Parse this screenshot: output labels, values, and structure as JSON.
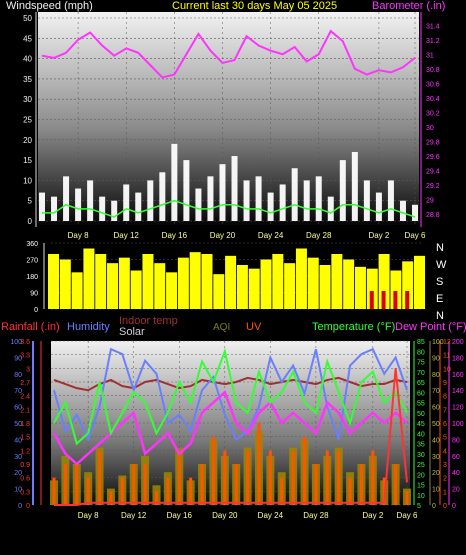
{
  "header": {
    "left_title": "Windspeed (mph)",
    "center_title": "Current last 30 days May 05 2025",
    "right_title": "Barometer (.in)"
  },
  "colors": {
    "wind_left_axis": "#f0f0f0",
    "barometer": "#ff33ff",
    "title_center": "#ffff00",
    "wind_gust": "#ffffff",
    "wind_avg": "#33ff33",
    "wind_dir": "#ffff00",
    "wind_dir_red": "#dd0000",
    "rainfall": "#ff3333",
    "humidity": "#6a7fff",
    "indoor_temp": "#a03030",
    "solar": "#d0d0d0",
    "aqi": "#808000",
    "uv": "#ff5500",
    "temperature": "#33ff33",
    "dew_point": "#ff33ff",
    "date_labels": "#ffff99"
  },
  "chart_data": [
    {
      "type": "line",
      "title": "Current last 30 days May 05 2025",
      "ylabel": "Windspeed (mph)",
      "y2label": "Barometer (.in)",
      "ylim": [
        0,
        50
      ],
      "yticks": [
        0,
        5,
        10,
        15,
        20,
        25,
        30,
        35,
        40,
        45,
        50
      ],
      "y2lim": [
        28.7,
        31.5
      ],
      "y2ticks": [
        "28.8",
        "29",
        "29.2",
        "29.4",
        "29.6",
        "29.8",
        "30",
        "30.2",
        "30.4",
        "30.6",
        "30.8",
        "31",
        "31.2",
        "31.4"
      ],
      "xticks": [
        "Day 8",
        "Day 12",
        "Day 16",
        "Day 20",
        "Day 24",
        "Day 28",
        "Day 2",
        "Day 6"
      ],
      "background": "gradient white to black",
      "series": [
        {
          "name": "Barometer (.in)",
          "axis": "right",
          "x": [
            5,
            6,
            7,
            8,
            9,
            10,
            11,
            12,
            13,
            14,
            15,
            16,
            17,
            18,
            19,
            20,
            21,
            22,
            23,
            24,
            25,
            26,
            27,
            28,
            29,
            30,
            1,
            2,
            3,
            4,
            5,
            6
          ],
          "values": [
            30.98,
            30.95,
            31.02,
            31.2,
            31.3,
            31.12,
            30.98,
            31.08,
            31.02,
            30.85,
            30.68,
            30.72,
            31.0,
            31.28,
            31.05,
            30.88,
            30.92,
            31.25,
            31.12,
            31.05,
            31.0,
            31.1,
            30.9,
            31.0,
            31.32,
            31.18,
            30.8,
            30.72,
            30.78,
            30.75,
            30.82,
            30.95
          ]
        },
        {
          "name": "Wind gust (mph)",
          "axis": "left",
          "x": [
            5,
            6,
            7,
            8,
            9,
            10,
            11,
            12,
            13,
            14,
            15,
            16,
            17,
            18,
            19,
            20,
            21,
            22,
            23,
            24,
            25,
            26,
            27,
            28,
            29,
            30,
            1,
            2,
            3,
            4,
            5,
            6
          ],
          "values": [
            7,
            6,
            11,
            8,
            10,
            6,
            5,
            9,
            7,
            10,
            12,
            19,
            15,
            8,
            11,
            14,
            16,
            10,
            11,
            7,
            9,
            13,
            10,
            11,
            6,
            15,
            17,
            10,
            7,
            10,
            5,
            4
          ]
        },
        {
          "name": "Wind average (mph)",
          "axis": "left",
          "x": [
            5,
            6,
            7,
            8,
            9,
            10,
            11,
            12,
            13,
            14,
            15,
            16,
            17,
            18,
            19,
            20,
            21,
            22,
            23,
            24,
            25,
            26,
            27,
            28,
            29,
            30,
            1,
            2,
            3,
            4,
            5,
            6
          ],
          "values": [
            2,
            2,
            4,
            3,
            3,
            2,
            1,
            3,
            2,
            3,
            4,
            5,
            4,
            3,
            3,
            4,
            4,
            3,
            3,
            2,
            3,
            4,
            3,
            3,
            2,
            4,
            4,
            3,
            2,
            3,
            2,
            1
          ]
        }
      ]
    },
    {
      "type": "scatter",
      "title": "",
      "ylabel": "",
      "ylim": [
        0,
        360
      ],
      "yticks": [
        0,
        90,
        180,
        270,
        360
      ],
      "right_labels": [
        "N",
        "W",
        "S",
        "E",
        "N"
      ],
      "series": [
        {
          "name": "Wind direction (deg)",
          "x": [
            5,
            6,
            7,
            8,
            9,
            10,
            11,
            12,
            13,
            14,
            15,
            16,
            17,
            18,
            19,
            20,
            21,
            22,
            23,
            24,
            25,
            26,
            27,
            28,
            29,
            30,
            1,
            2,
            3,
            4,
            5,
            6
          ],
          "values": [
            300,
            270,
            200,
            330,
            300,
            250,
            280,
            210,
            300,
            250,
            200,
            280,
            310,
            300,
            190,
            290,
            240,
            220,
            270,
            300,
            250,
            330,
            280,
            240,
            300,
            270,
            230,
            220,
            300,
            210,
            260,
            290
          ]
        }
      ]
    },
    {
      "type": "line",
      "title": "",
      "xticks": [
        "Day 8",
        "Day 12",
        "Day 16",
        "Day 20",
        "Day 24",
        "Day 28",
        "Day 2",
        "Day 6"
      ],
      "axes": [
        {
          "label": "Rainfall (.in)",
          "ticks": [
            "0",
            "0.3",
            "0.6",
            "0.9",
            "1.2",
            "1.5",
            "1.8",
            "2.1",
            "2.4",
            "2.7",
            "3",
            "3.3",
            "3.6"
          ]
        },
        {
          "label": "Humidity",
          "ticks": [
            "0",
            "10",
            "20",
            "30",
            "40",
            "50",
            "60",
            "70",
            "80",
            "90",
            "100"
          ]
        },
        {
          "label": "Indoor temp",
          "ticks": []
        },
        {
          "label": "Solar",
          "ticks": []
        },
        {
          "label": "AQI",
          "ticks": [
            "0",
            "10",
            "20",
            "30",
            "40",
            "50",
            "60",
            "70",
            "80",
            "90",
            "100"
          ]
        },
        {
          "label": "UV",
          "ticks": [
            "0",
            "1",
            "2",
            "3",
            "4",
            "5",
            "6",
            "7",
            "8",
            "9",
            "10",
            "11",
            "12"
          ]
        },
        {
          "label": "Temperature (°F)",
          "ticks": [
            "5",
            "10",
            "15",
            "20",
            "25",
            "30",
            "35",
            "40",
            "45",
            "50",
            "55",
            "60",
            "65",
            "70",
            "75",
            "80",
            "85"
          ]
        },
        {
          "label": "Dew Point (°F)",
          "ticks": [
            "0",
            "20",
            "40",
            "60",
            "80",
            "100",
            "120",
            "140",
            "160",
            "180",
            "200"
          ]
        }
      ],
      "series": [
        {
          "name": "Humidity",
          "axis": "Humidity",
          "x": [
            5,
            6,
            7,
            8,
            9,
            10,
            11,
            12,
            13,
            14,
            15,
            16,
            17,
            18,
            19,
            20,
            21,
            22,
            23,
            24,
            25,
            26,
            27,
            28,
            29,
            30,
            1,
            2,
            3,
            4,
            5,
            6
          ],
          "values": [
            70,
            45,
            55,
            40,
            60,
            95,
            92,
            70,
            88,
            80,
            50,
            55,
            45,
            70,
            78,
            55,
            40,
            45,
            60,
            90,
            75,
            85,
            68,
            95,
            60,
            40,
            85,
            92,
            95,
            80,
            90,
            70
          ]
        },
        {
          "name": "Temperature (°F)",
          "axis": "Temperature (°F)",
          "x": [
            5,
            6,
            7,
            8,
            9,
            10,
            11,
            12,
            13,
            14,
            15,
            16,
            17,
            18,
            19,
            20,
            21,
            22,
            23,
            24,
            25,
            26,
            27,
            28,
            29,
            30,
            1,
            2,
            3,
            4,
            5,
            6
          ],
          "values": [
            45,
            55,
            35,
            40,
            65,
            40,
            50,
            60,
            55,
            40,
            50,
            65,
            55,
            75,
            65,
            80,
            55,
            50,
            70,
            55,
            60,
            70,
            55,
            50,
            75,
            60,
            45,
            65,
            70,
            55,
            60,
            50
          ]
        },
        {
          "name": "Dew Point (°F)",
          "axis": "Temperature (°F)",
          "x": [
            5,
            6,
            7,
            8,
            9,
            10,
            11,
            12,
            13,
            14,
            15,
            16,
            17,
            18,
            19,
            20,
            21,
            22,
            23,
            24,
            25,
            26,
            27,
            28,
            29,
            30,
            1,
            2,
            3,
            4,
            5,
            6
          ],
          "values": [
            40,
            30,
            25,
            30,
            35,
            40,
            45,
            50,
            30,
            35,
            40,
            30,
            35,
            50,
            55,
            60,
            45,
            40,
            50,
            55,
            45,
            50,
            45,
            40,
            55,
            50,
            40,
            45,
            50,
            45,
            50,
            45
          ]
        },
        {
          "name": "Indoor temp",
          "axis": "Temperature (°F)",
          "x": [
            5,
            6,
            7,
            8,
            9,
            10,
            11,
            12,
            13,
            14,
            15,
            16,
            17,
            18,
            19,
            20,
            21,
            22,
            23,
            24,
            25,
            26,
            27,
            28,
            29,
            30,
            1,
            2,
            3,
            4,
            5,
            6
          ],
          "values": [
            66,
            64,
            62,
            61,
            64,
            66,
            63,
            62,
            65,
            66,
            64,
            62,
            63,
            66,
            65,
            64,
            65,
            67,
            66,
            64,
            65,
            66,
            65,
            64,
            66,
            67,
            65,
            63,
            64,
            64,
            66,
            65
          ]
        },
        {
          "name": "Rainfall (.in)",
          "axis": "Rainfall (.in)",
          "x": [
            5,
            6,
            7,
            8,
            9,
            10,
            11,
            12,
            13,
            14,
            15,
            16,
            17,
            18,
            19,
            20,
            21,
            22,
            23,
            24,
            25,
            26,
            27,
            28,
            29,
            30,
            1,
            2,
            3,
            4,
            5,
            6
          ],
          "values": [
            0,
            0,
            0,
            0.05,
            0.05,
            0.05,
            0.05,
            0.05,
            0.05,
            0.05,
            0.05,
            0.05,
            0.05,
            0.05,
            0.05,
            0.05,
            0.05,
            0.05,
            0.05,
            0.05,
            0.05,
            0.05,
            0.05,
            0.05,
            0.05,
            0.05,
            0.05,
            0.05,
            0.05,
            0.05,
            3.0,
            0.5
          ]
        },
        {
          "name": "Solar",
          "axis": "AQI",
          "x": [
            5,
            6,
            7,
            8,
            9,
            10,
            11,
            12,
            13,
            14,
            15,
            16,
            17,
            18,
            19,
            20,
            21,
            22,
            23,
            24,
            25,
            26,
            27,
            28,
            29,
            30,
            1,
            2,
            3,
            4,
            5,
            6
          ],
          "values": [
            15,
            30,
            25,
            20,
            35,
            10,
            18,
            25,
            30,
            12,
            20,
            35,
            15,
            25,
            40,
            30,
            25,
            35,
            45,
            30,
            20,
            35,
            40,
            25,
            30,
            35,
            20,
            25,
            30,
            15,
            25,
            10
          ]
        },
        {
          "name": "UV",
          "axis": "UV",
          "x": [
            5,
            6,
            7,
            8,
            9,
            10,
            11,
            12,
            13,
            14,
            15,
            16,
            17,
            18,
            19,
            20,
            21,
            22,
            23,
            24,
            25,
            26,
            27,
            28,
            29,
            30,
            1,
            2,
            3,
            4,
            5,
            6
          ],
          "values": [
            2,
            3,
            3,
            2,
            4,
            1,
            2,
            3,
            3,
            1,
            2,
            4,
            2,
            3,
            5,
            4,
            3,
            4,
            6,
            4,
            2,
            4,
            5,
            3,
            4,
            4,
            2,
            3,
            4,
            2,
            3,
            1
          ]
        }
      ]
    }
  ],
  "panels": {
    "bottom_header": {
      "rainfall": "Rainfall (.in)",
      "humidity": "Humidity",
      "indoor_temp": "Indoor temp",
      "solar": "Solar",
      "aqi": "AQI",
      "uv": "UV",
      "temperature": "Temperature (°F)",
      "dew_point": "Dew Point (°F)"
    }
  }
}
